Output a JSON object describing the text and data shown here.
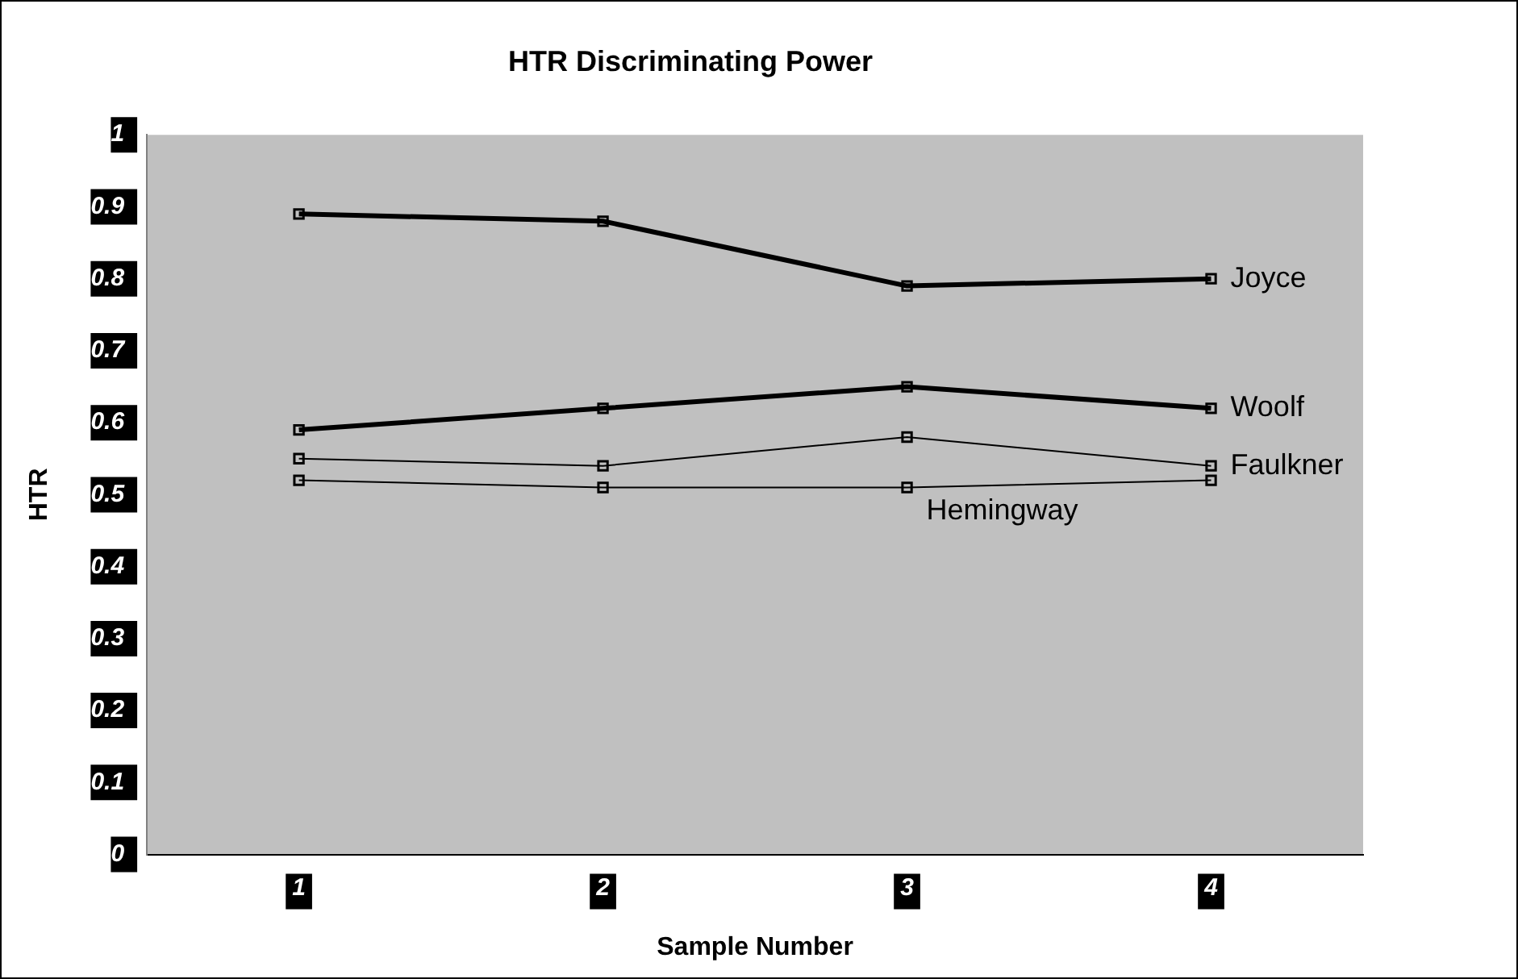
{
  "chart_data": {
    "type": "line",
    "title": "HTR Discriminating Power",
    "xlabel": "Sample Number",
    "ylabel": "HTR",
    "categories": [
      "1",
      "2",
      "3",
      "4"
    ],
    "ylim": [
      0,
      1
    ],
    "yticks": [
      0,
      0.1,
      0.2,
      0.3,
      0.4,
      0.5,
      0.6,
      0.7,
      0.8,
      0.9,
      1
    ],
    "grid": false,
    "legend": false,
    "marker": "square",
    "line_style": "solid",
    "series": [
      {
        "name": "Joyce",
        "color": "#000000",
        "values": [
          0.89,
          0.88,
          0.79,
          0.8
        ]
      },
      {
        "name": "Woolf",
        "color": "#000000",
        "values": [
          0.59,
          0.62,
          0.65,
          0.62
        ]
      },
      {
        "name": "Faulkner",
        "color": "#000000",
        "values": [
          0.55,
          0.54,
          0.58,
          0.54
        ]
      },
      {
        "name": "Hemingway",
        "color": "#000000",
        "values": [
          0.52,
          0.51,
          0.51,
          0.52
        ]
      }
    ]
  }
}
